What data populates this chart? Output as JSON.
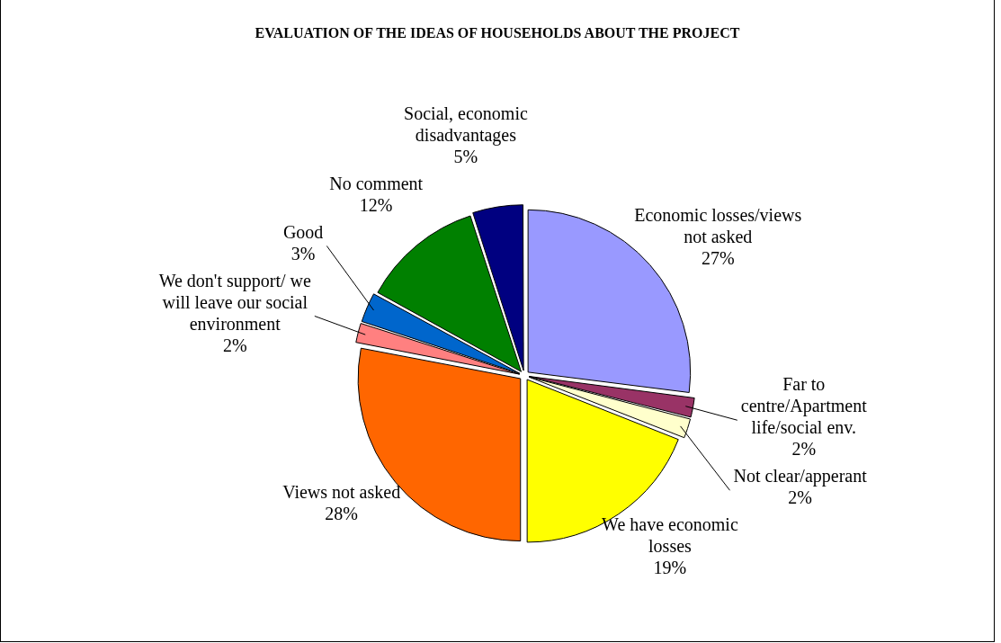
{
  "chart_data": {
    "type": "pie",
    "title": "EVALUATION OF THE IDEAS OF HOUSEHOLDS ABOUT THE PROJECT",
    "categories": [
      "Economic losses/views not asked",
      "Far to centre/Apartment life/social env.",
      "Not clear/apperant",
      "We have economic losses",
      "Views not asked",
      "We don't support/ we will leave our social environment",
      "Good",
      "No comment",
      "Social, economic disadvantages"
    ],
    "values": [
      27,
      2,
      2,
      19,
      28,
      2,
      3,
      12,
      5
    ],
    "value_labels": [
      "27%",
      "2%",
      "2%",
      "19%",
      "28%",
      "2%",
      "3%",
      "12%",
      "5%"
    ],
    "colors": [
      "#9999ff",
      "#993366",
      "#ffffcc",
      "#ffff00",
      "#ff6600",
      "#ff8080",
      "#0066cc",
      "#008000",
      "#000080"
    ],
    "legend": false
  }
}
